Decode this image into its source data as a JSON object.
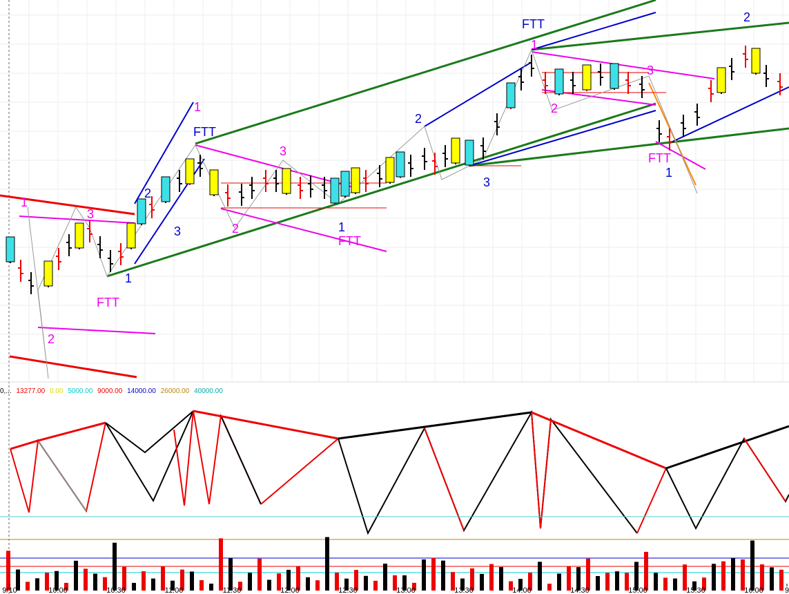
{
  "time_axis": {
    "labels": [
      "9/10",
      "10:00",
      "10:30",
      "11:00",
      "11:30",
      "12:00",
      "12:30",
      "13:00",
      "13:30",
      "14:00",
      "14:30",
      "15:00",
      "15:30",
      "16:00",
      "9"
    ]
  },
  "volume_legend": {
    "prefix": "0,...",
    "levels": [
      "13277.00",
      "0.00",
      "5000.00",
      "9000.00",
      "14000.00",
      "26000.00",
      "40000.00"
    ]
  },
  "annotations": [
    "1",
    "3",
    "FTT",
    "2",
    "1",
    "2",
    "3",
    "1",
    "FTT",
    "3",
    "2",
    "1",
    "FTT",
    "2",
    "3",
    "FTT",
    "1",
    "2",
    "3",
    "FTT",
    "1",
    "2"
  ]
}
